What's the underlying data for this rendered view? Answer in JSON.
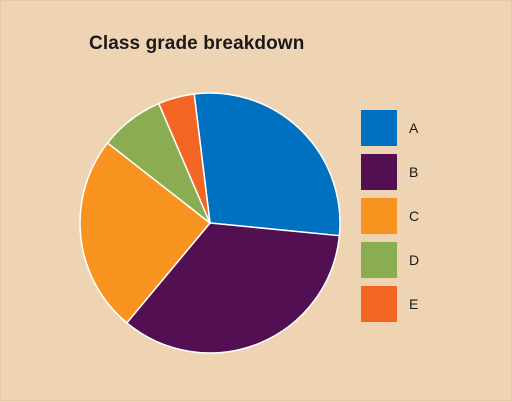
{
  "chart_data": {
    "type": "pie",
    "title": "Class grade breakdown",
    "categories": [
      "A",
      "B",
      "C",
      "D",
      "E"
    ],
    "values": [
      28.5,
      34.5,
      24.5,
      8.0,
      4.5
    ],
    "colors": [
      "#0070c0",
      "#520f52",
      "#f7931e",
      "#8aad51",
      "#f26522"
    ],
    "legend_position": "right"
  }
}
